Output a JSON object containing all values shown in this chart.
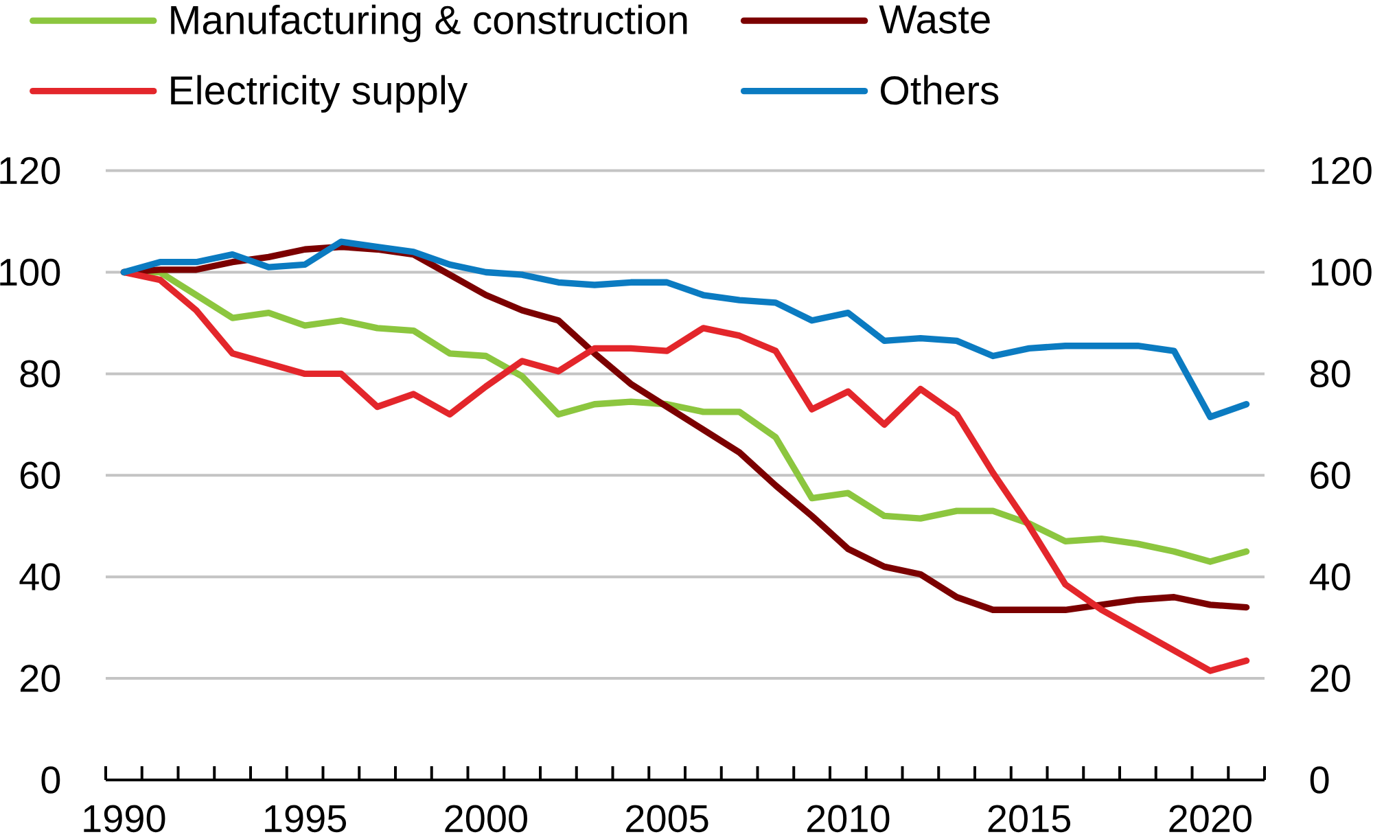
{
  "chart_data": {
    "type": "line",
    "categories": [
      "1990",
      null,
      null,
      null,
      null,
      "1995",
      null,
      null,
      null,
      null,
      "2000",
      null,
      null,
      null,
      null,
      "2005",
      null,
      null,
      null,
      null,
      "2010",
      null,
      null,
      null,
      null,
      "2015",
      null,
      null,
      null,
      null,
      "2020",
      null
    ],
    "series": [
      {
        "name": "Manufacturing & construction",
        "color": "#8cc63f",
        "values": [
          100,
          100,
          95.5,
          91,
          92,
          89.5,
          90.5,
          89,
          88.5,
          84,
          83.5,
          79.5,
          72,
          74,
          74.5,
          74,
          72.5,
          72.5,
          67.5,
          55.5,
          56.5,
          52,
          51.5,
          53,
          53,
          50.5,
          47,
          47.5,
          46.5,
          45,
          43,
          45
        ]
      },
      {
        "name": "Waste",
        "color": "#7b0000",
        "values": [
          100,
          100.5,
          100.5,
          102,
          103,
          104.5,
          105,
          104.5,
          103.5,
          99.5,
          95.5,
          92.5,
          90.5,
          84,
          78,
          73.5,
          69,
          64.5,
          58,
          52,
          45.5,
          42,
          40.5,
          36,
          33.5,
          33.5,
          33.5,
          34.5,
          35.5,
          36,
          34.5,
          34
        ]
      },
      {
        "name": "Electricity supply",
        "color": "#e3262b",
        "values": [
          100,
          98.5,
          92.5,
          84,
          82,
          80,
          80,
          73.5,
          76,
          72,
          77.5,
          82.5,
          80.5,
          85,
          85,
          84.5,
          89,
          87.5,
          84.5,
          73,
          76.5,
          70,
          77,
          72,
          60.5,
          50,
          38.5,
          33.5,
          29.5,
          25.5,
          21.5,
          23.5
        ]
      },
      {
        "name": "Others",
        "color": "#0b7bc1",
        "values": [
          100,
          102,
          102,
          103.5,
          101,
          101.5,
          106,
          105,
          104,
          101.5,
          100,
          99.5,
          98,
          97.5,
          98,
          98,
          95.5,
          94.5,
          94,
          90.5,
          92,
          86.5,
          87,
          86.5,
          83.5,
          85,
          85.5,
          85.5,
          85.5,
          84.5,
          71.5,
          74
        ]
      }
    ],
    "ylim": [
      0,
      120
    ],
    "yticks": [
      0,
      20,
      40,
      60,
      80,
      100,
      120
    ],
    "y2lim": [
      0,
      120
    ],
    "y2ticks": [
      0,
      20,
      40,
      60,
      80,
      100,
      120
    ],
    "grid": "y",
    "legend": "top",
    "line_style": "solid"
  }
}
